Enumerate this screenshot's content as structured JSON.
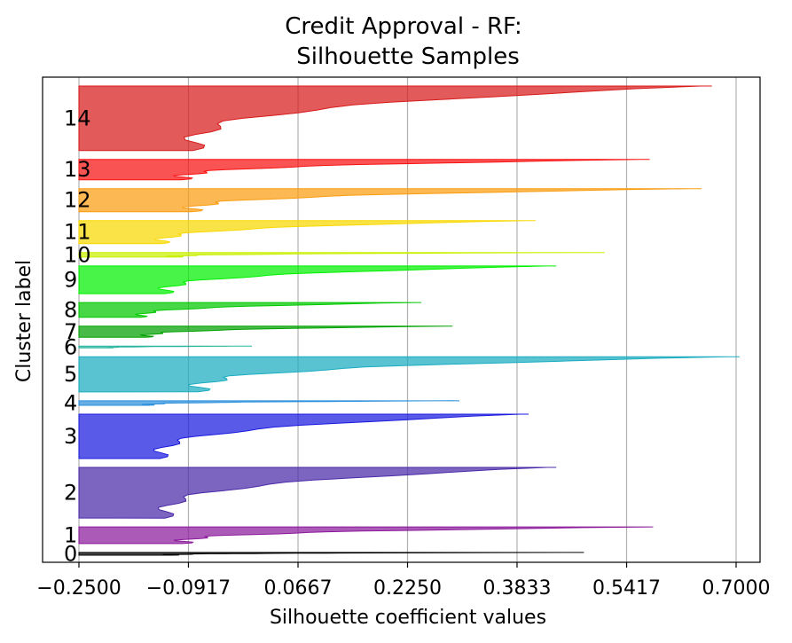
{
  "chart_data": {
    "type": "area",
    "title_line1": "Credit Approval - RF:",
    "title_line2": "Silhouette Samples",
    "xlabel": "Silhouette coefficient values",
    "ylabel": "Cluster label",
    "xlim": [
      -0.25,
      0.75
    ],
    "x_ticks": [
      -0.25,
      -0.0917,
      0.0667,
      0.225,
      0.3833,
      0.5417,
      0.7
    ],
    "x_tick_labels": [
      "−0.2500",
      "−0.0917",
      "0.0667",
      "0.2250",
      "0.3833",
      "0.5417",
      "0.7000"
    ],
    "grid": "vertical",
    "clusters": [
      {
        "label": "0",
        "color": "#000000",
        "size": 3,
        "max": 0.48,
        "min": -0.25
      },
      {
        "label": "1",
        "color": "#8b1a9b",
        "size": 18,
        "max": 0.58,
        "min": -0.25
      },
      {
        "label": "2",
        "color": "#4a2aa8",
        "size": 55,
        "max": 0.44,
        "min": -0.25
      },
      {
        "label": "3",
        "color": "#1a1ae0",
        "size": 48,
        "max": 0.4,
        "min": -0.25
      },
      {
        "label": "4",
        "color": "#2a8fdc",
        "size": 5,
        "max": 0.3,
        "min": -0.25
      },
      {
        "label": "5",
        "color": "#1aacc0",
        "size": 38,
        "max": 0.705,
        "min": -0.25
      },
      {
        "label": "6",
        "color": "#2ab5a0",
        "size": 2,
        "max": 0.0,
        "min": -0.25
      },
      {
        "label": "7",
        "color": "#00a000",
        "size": 12,
        "max": 0.29,
        "min": -0.25
      },
      {
        "label": "8",
        "color": "#00c800",
        "size": 16,
        "max": 0.245,
        "min": -0.25
      },
      {
        "label": "9",
        "color": "#00f000",
        "size": 30,
        "max": 0.44,
        "min": -0.25
      },
      {
        "label": "10",
        "color": "#c8f000",
        "size": 5,
        "max": 0.51,
        "min": -0.25
      },
      {
        "label": "11",
        "color": "#f8d800",
        "size": 25,
        "max": 0.41,
        "min": -0.25
      },
      {
        "label": "12",
        "color": "#fa9c10",
        "size": 25,
        "max": 0.65,
        "min": -0.25
      },
      {
        "label": "13",
        "color": "#f81010",
        "size": 22,
        "max": 0.575,
        "min": -0.25
      },
      {
        "label": "14",
        "color": "#d81a1a",
        "size": 70,
        "max": 0.665,
        "min": -0.25
      }
    ]
  }
}
